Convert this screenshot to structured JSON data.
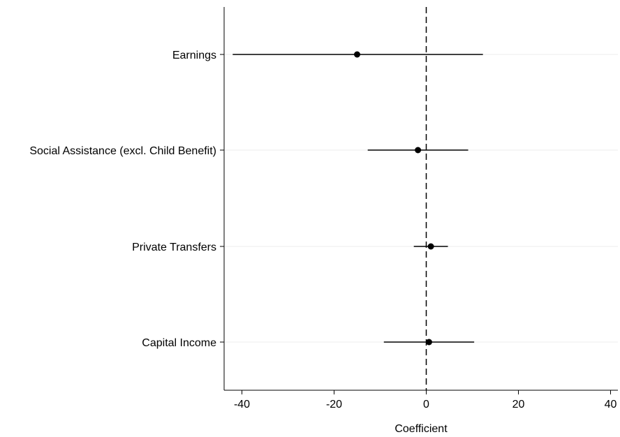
{
  "chart_data": {
    "type": "scatter",
    "variant": "coefficient-plot",
    "orientation": "horizontal",
    "title": "",
    "xlabel": "Coefficient",
    "ylabel": "",
    "xlim": [
      -44,
      41
    ],
    "xticks": [
      -40,
      -20,
      0,
      20,
      40
    ],
    "xtick_labels": [
      "-40",
      "-20",
      "0",
      "20",
      "40"
    ],
    "reference_line": {
      "x": 0,
      "style": "dashed"
    },
    "grid": "horizontal lines at categories",
    "colors": {
      "marker": "#000000",
      "ci": "#000000",
      "grid": "#eeeeee",
      "axis": "#000000"
    },
    "series": [
      {
        "category": "Earnings",
        "estimate": -15,
        "ci_low": -42,
        "ci_high": 12.3
      },
      {
        "category": "Social Assistance (excl. Child Benefit)",
        "estimate": -1.8,
        "ci_low": -12.7,
        "ci_high": 9.1
      },
      {
        "category": "Private Transfers",
        "estimate": 1.0,
        "ci_low": -2.7,
        "ci_high": 4.7
      },
      {
        "category": "Capital Income",
        "estimate": 0.6,
        "ci_low": -9.2,
        "ci_high": 10.4
      }
    ]
  }
}
